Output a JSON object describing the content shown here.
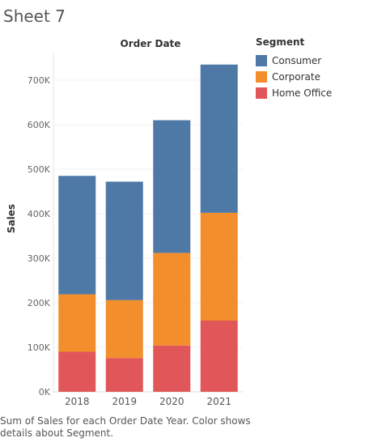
{
  "sheet": {
    "title": "Sheet 7"
  },
  "chart_data": {
    "type": "bar",
    "stacked": true,
    "column_header": "Order Date",
    "ylabel": "Sales",
    "categories": [
      "2018",
      "2019",
      "2020",
      "2021"
    ],
    "ylim": [
      0,
      760000
    ],
    "yticks": [
      0,
      100000,
      200000,
      300000,
      400000,
      500000,
      600000,
      700000
    ],
    "ytick_labels": [
      "0K",
      "100K",
      "200K",
      "300K",
      "400K",
      "500K",
      "600K",
      "700K"
    ],
    "grid": true,
    "legend_title": "Segment",
    "legend_position": "right",
    "series": [
      {
        "name": "Home Office",
        "color": "#E15759",
        "values": [
          90000,
          76000,
          104000,
          160000
        ]
      },
      {
        "name": "Corporate",
        "color": "#F28E2B",
        "values": [
          129000,
          130000,
          208000,
          242000
        ]
      },
      {
        "name": "Consumer",
        "color": "#4E79A7",
        "values": [
          266000,
          266000,
          298000,
          333000
        ]
      }
    ]
  },
  "caption": "Sum of Sales for each Order Date Year.  Color shows details about Segment."
}
